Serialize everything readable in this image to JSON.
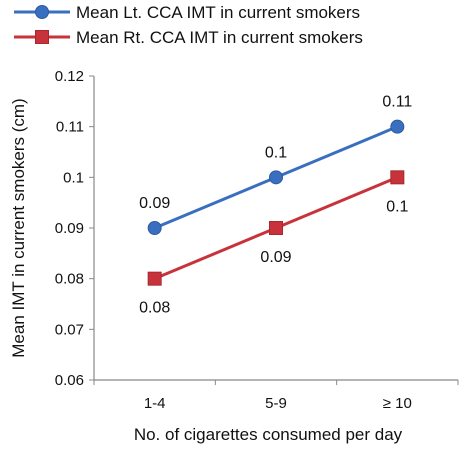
{
  "chart_data": {
    "type": "line",
    "categories": [
      "1-4",
      "5-9",
      "≥ 10"
    ],
    "series": [
      {
        "name": "Mean Lt. CCA IMT in current smokers",
        "values": [
          0.09,
          0.1,
          0.11
        ],
        "data_labels": [
          "0.09",
          "0.1",
          "0.11"
        ],
        "color": "#3a6fbf",
        "marker": "circle"
      },
      {
        "name": "Mean Rt. CCA IMT in current smokers",
        "values": [
          0.08,
          0.09,
          0.1
        ],
        "data_labels": [
          "0.08",
          "0.09",
          "0.1"
        ],
        "color": "#c8323a",
        "marker": "square"
      }
    ],
    "xlabel": "No. of cigarettes consumed  per day",
    "ylabel": "Mean IMT in current smokers (cm)",
    "ylim": [
      0.06,
      0.12
    ],
    "yticks": [
      "0.06",
      "0.07",
      "0.08",
      "0.09",
      "0.1",
      "0.11",
      "0.12"
    ],
    "grid": false,
    "legend_position": "top"
  }
}
